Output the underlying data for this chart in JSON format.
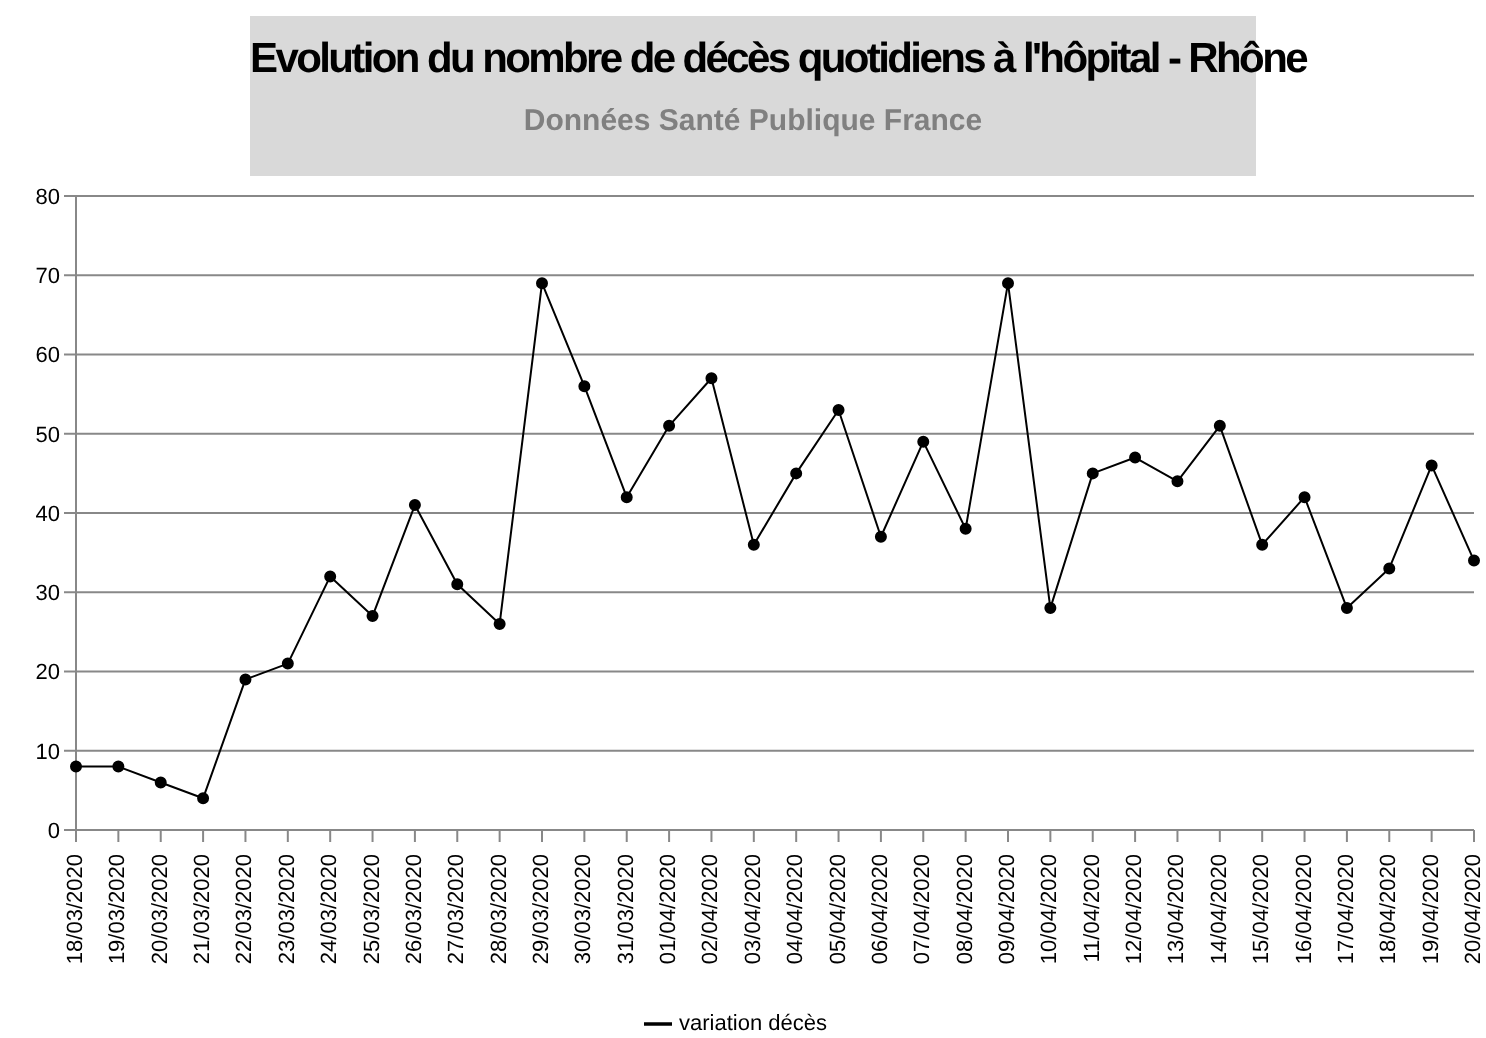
{
  "chart_data": {
    "type": "line",
    "title": "Evolution du nombre de décès quotidiens  à l'hôpital - Rhône",
    "subtitle": "Données Santé Publique France",
    "categories": [
      "18/03/2020",
      "19/03/2020",
      "20/03/2020",
      "21/03/2020",
      "22/03/2020",
      "23/03/2020",
      "24/03/2020",
      "25/03/2020",
      "26/03/2020",
      "27/03/2020",
      "28/03/2020",
      "29/03/2020",
      "30/03/2020",
      "31/03/2020",
      "01/04/2020",
      "02/04/2020",
      "03/04/2020",
      "04/04/2020",
      "05/04/2020",
      "06/04/2020",
      "07/04/2020",
      "08/04/2020",
      "09/04/2020",
      "10/04/2020",
      "11/04/2020",
      "12/04/2020",
      "13/04/2020",
      "14/04/2020",
      "15/04/2020",
      "16/04/2020",
      "17/04/2020",
      "18/04/2020",
      "19/04/2020",
      "20/04/2020"
    ],
    "series": [
      {
        "name": "variation décès",
        "color": "#000000",
        "values": [
          8,
          8,
          6,
          4,
          19,
          21,
          32,
          27,
          41,
          31,
          26,
          69,
          56,
          42,
          51,
          57,
          36,
          45,
          53,
          37,
          49,
          38,
          69,
          28,
          45,
          47,
          44,
          51,
          36,
          42,
          28,
          33,
          46,
          34
        ]
      }
    ],
    "ylim": [
      0,
      80
    ],
    "yticks": [
      0,
      10,
      20,
      30,
      40,
      50,
      60,
      70,
      80
    ],
    "grid": "y",
    "legend": "bottom",
    "marker": "circle",
    "line_style": "solid"
  }
}
